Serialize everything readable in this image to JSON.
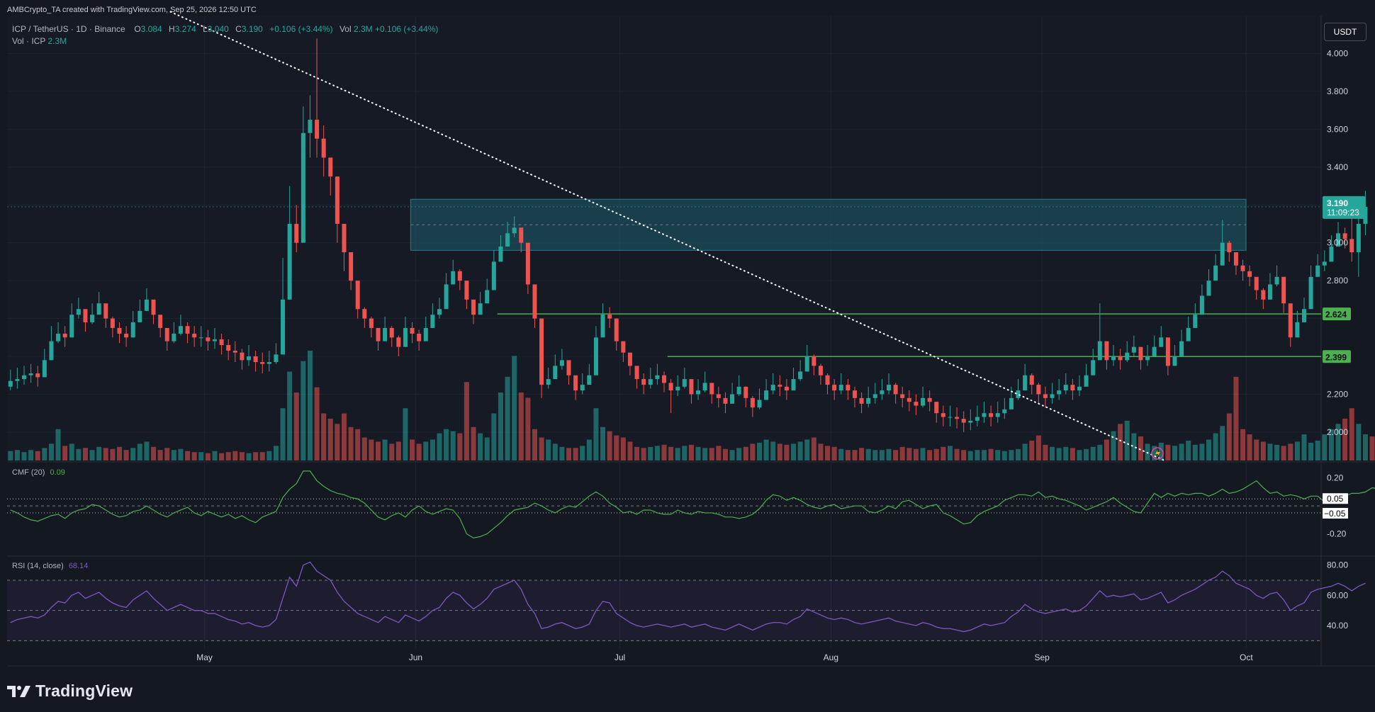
{
  "attribution": "AMBCrypto_TA created with TradingView.com, Sep 25, 2026 12:50 UTC",
  "symbol": {
    "name": "ICP / TetherUS · 1D · Binance",
    "open_label": "O",
    "open": "3.084",
    "high_label": "H",
    "high": "3.274",
    "low_label": "L",
    "low": "3.040",
    "close_label": "C",
    "close": "3.190",
    "change": "+0.106 (+3.44%)",
    "vol_label": "Vol",
    "vol_value": "2.3M",
    "vol_change": "+0.106 (+3.44%)"
  },
  "volume_legend": {
    "label": "Vol · ICP",
    "value": "2.3M"
  },
  "currency_button": "USDT",
  "price_badge": {
    "price": "3.190",
    "countdown": "11:09:23"
  },
  "level_badges": [
    "2.624",
    "2.399"
  ],
  "price_axis_labels": [
    "4.000",
    "3.800",
    "3.600",
    "3.400",
    "3.000",
    "2.800",
    "2.200",
    "2.000"
  ],
  "time_axis_labels": [
    "May",
    "Jun",
    "Jul",
    "Aug",
    "Sep",
    "Oct"
  ],
  "cmf": {
    "label": "CMF (20)",
    "value": "0.09",
    "axis_labels": [
      "0.20",
      "-0.20"
    ],
    "level_badges": [
      "0.05",
      "−0.05"
    ]
  },
  "rsi": {
    "label": "RSI (14, close)",
    "value": "68.14",
    "axis_labels": [
      "80.00",
      "60.00",
      "40.00"
    ]
  },
  "brand": "TradingView",
  "colors": {
    "up": "#26a69a",
    "down": "#ef5350",
    "cmf": "#4caf50",
    "rsi": "#7e57c2",
    "level": "#4caf50",
    "zone": "#1e5f6e"
  },
  "chart_data": [
    {
      "type": "candlestick",
      "title": "ICP / TetherUS · 1D · Binance",
      "x_range": [
        "2026-04-02",
        "2026-10-12"
      ],
      "ylim": [
        1.85,
        4.2
      ],
      "closes": [
        2.27,
        2.28,
        2.3,
        2.31,
        2.29,
        2.38,
        2.48,
        2.52,
        2.5,
        2.62,
        2.65,
        2.58,
        2.62,
        2.68,
        2.6,
        2.55,
        2.52,
        2.5,
        2.58,
        2.64,
        2.7,
        2.62,
        2.55,
        2.48,
        2.52,
        2.56,
        2.52,
        2.5,
        2.5,
        2.48,
        2.49,
        2.46,
        2.43,
        2.42,
        2.38,
        2.4,
        2.37,
        2.36,
        2.37,
        2.41,
        2.7,
        3.1,
        3.0,
        3.58,
        3.65,
        3.55,
        3.45,
        3.35,
        3.1,
        2.95,
        2.8,
        2.65,
        2.6,
        2.55,
        2.48,
        2.55,
        2.5,
        2.45,
        2.55,
        2.52,
        2.48,
        2.55,
        2.62,
        2.65,
        2.78,
        2.85,
        2.8,
        2.7,
        2.62,
        2.68,
        2.75,
        2.9,
        2.98,
        3.05,
        3.08,
        3.0,
        2.78,
        2.6,
        2.25,
        2.28,
        2.35,
        2.38,
        2.3,
        2.22,
        2.25,
        2.3,
        2.5,
        2.62,
        2.6,
        2.48,
        2.42,
        2.35,
        2.28,
        2.25,
        2.28,
        2.3,
        2.26,
        2.22,
        2.24,
        2.28,
        2.2,
        2.22,
        2.26,
        2.2,
        2.18,
        2.15,
        2.2,
        2.24,
        2.18,
        2.13,
        2.17,
        2.22,
        2.25,
        2.24,
        2.22,
        2.28,
        2.32,
        2.4,
        2.35,
        2.3,
        2.25,
        2.22,
        2.25,
        2.22,
        2.18,
        2.15,
        2.18,
        2.2,
        2.22,
        2.25,
        2.2,
        2.18,
        2.16,
        2.14,
        2.18,
        2.16,
        2.1,
        2.08,
        2.08,
        2.07,
        2.05,
        2.06,
        2.08,
        2.1,
        2.08,
        2.1,
        2.12,
        2.18,
        2.22,
        2.3,
        2.25,
        2.2,
        2.18,
        2.2,
        2.22,
        2.25,
        2.22,
        2.24,
        2.3,
        2.38,
        2.48,
        2.38,
        2.4,
        2.38,
        2.42,
        2.45,
        2.38,
        2.4,
        2.45,
        2.5,
        2.35,
        2.4,
        2.48,
        2.55,
        2.62,
        2.72,
        2.8,
        2.88,
        3.0,
        2.95,
        2.88,
        2.85,
        2.82,
        2.75,
        2.7,
        2.78,
        2.82,
        2.68,
        2.5,
        2.58,
        2.65,
        2.82,
        2.88,
        2.9,
        2.98,
        3.05,
        3.02,
        2.95,
        3.1,
        3.19
      ],
      "highs": [
        2.33,
        2.34,
        2.35,
        2.36,
        2.35,
        2.44,
        2.56,
        2.58,
        2.56,
        2.68,
        2.71,
        2.64,
        2.68,
        2.74,
        2.66,
        2.61,
        2.58,
        2.56,
        2.64,
        2.7,
        2.76,
        2.68,
        2.61,
        2.54,
        2.58,
        2.62,
        2.58,
        2.56,
        2.56,
        2.54,
        2.55,
        2.52,
        2.49,
        2.48,
        2.44,
        2.46,
        2.43,
        2.42,
        2.43,
        2.47,
        2.92,
        3.3,
        3.2,
        3.72,
        3.78,
        4.08,
        3.62,
        3.45,
        3.2,
        3.05,
        2.88,
        2.71,
        2.66,
        2.61,
        2.54,
        2.61,
        2.56,
        2.51,
        2.61,
        2.58,
        2.54,
        2.61,
        2.68,
        2.71,
        2.84,
        2.91,
        2.86,
        2.76,
        2.68,
        2.74,
        2.81,
        2.96,
        3.04,
        3.11,
        3.14,
        3.06,
        2.84,
        2.66,
        2.31,
        2.34,
        2.41,
        2.44,
        2.36,
        2.28,
        2.31,
        2.36,
        2.56,
        2.68,
        2.66,
        2.54,
        2.48,
        2.41,
        2.34,
        2.31,
        2.34,
        2.36,
        2.32,
        2.28,
        2.3,
        2.34,
        2.26,
        2.28,
        2.32,
        2.26,
        2.24,
        2.21,
        2.26,
        2.3,
        2.24,
        2.19,
        2.23,
        2.28,
        2.31,
        2.3,
        2.28,
        2.34,
        2.38,
        2.46,
        2.41,
        2.36,
        2.31,
        2.28,
        2.31,
        2.28,
        2.24,
        2.21,
        2.24,
        2.26,
        2.28,
        2.31,
        2.26,
        2.24,
        2.22,
        2.2,
        2.24,
        2.22,
        2.16,
        2.14,
        2.14,
        2.13,
        2.11,
        2.12,
        2.14,
        2.16,
        2.14,
        2.16,
        2.18,
        2.24,
        2.28,
        2.36,
        2.31,
        2.26,
        2.24,
        2.26,
        2.28,
        2.31,
        2.28,
        2.3,
        2.36,
        2.44,
        2.68,
        2.44,
        2.46,
        2.44,
        2.48,
        2.51,
        2.44,
        2.46,
        2.51,
        2.56,
        2.41,
        2.46,
        2.54,
        2.61,
        2.68,
        2.78,
        2.86,
        2.94,
        3.12,
        3.01,
        2.94,
        2.91,
        2.88,
        2.81,
        2.76,
        2.84,
        2.88,
        2.74,
        2.56,
        2.64,
        2.71,
        2.88,
        2.94,
        2.96,
        3.04,
        3.11,
        3.08,
        3.15,
        3.2,
        3.274
      ],
      "lows": [
        2.22,
        2.23,
        2.25,
        2.26,
        2.24,
        2.33,
        2.43,
        2.47,
        2.45,
        2.57,
        2.6,
        2.53,
        2.57,
        2.63,
        2.55,
        2.5,
        2.47,
        2.45,
        2.53,
        2.59,
        2.65,
        2.57,
        2.5,
        2.43,
        2.47,
        2.51,
        2.47,
        2.45,
        2.45,
        2.43,
        2.44,
        2.41,
        2.38,
        2.37,
        2.33,
        2.35,
        2.32,
        2.31,
        2.32,
        2.36,
        2.65,
        2.95,
        2.95,
        3.1,
        3.45,
        3.45,
        3.35,
        3.25,
        3.0,
        2.85,
        2.75,
        2.6,
        2.55,
        2.5,
        2.43,
        2.5,
        2.45,
        2.4,
        2.5,
        2.47,
        2.43,
        2.5,
        2.57,
        2.6,
        2.73,
        2.8,
        2.75,
        2.65,
        2.57,
        2.63,
        2.7,
        2.85,
        2.93,
        3.0,
        3.03,
        2.95,
        2.73,
        2.55,
        2.18,
        2.23,
        2.3,
        2.33,
        2.25,
        2.17,
        2.2,
        2.25,
        2.45,
        2.57,
        2.55,
        2.43,
        2.37,
        2.3,
        2.23,
        2.2,
        2.23,
        2.25,
        2.21,
        2.1,
        2.19,
        2.23,
        2.15,
        2.17,
        2.21,
        2.15,
        2.13,
        2.1,
        2.15,
        2.19,
        2.13,
        2.08,
        2.12,
        2.17,
        2.2,
        2.19,
        2.17,
        2.23,
        2.27,
        2.35,
        2.3,
        2.25,
        2.2,
        2.17,
        2.2,
        2.17,
        2.13,
        2.1,
        2.13,
        2.15,
        2.17,
        2.2,
        2.15,
        2.13,
        2.11,
        2.09,
        2.13,
        2.11,
        2.05,
        2.03,
        2.03,
        2.02,
        2.0,
        2.01,
        2.03,
        2.05,
        2.03,
        2.05,
        2.07,
        2.13,
        2.17,
        2.25,
        2.2,
        2.15,
        2.13,
        2.15,
        2.17,
        2.2,
        2.17,
        2.19,
        2.25,
        2.33,
        2.43,
        2.33,
        2.35,
        2.33,
        2.37,
        2.4,
        2.33,
        2.35,
        2.4,
        2.45,
        2.3,
        2.35,
        2.43,
        2.5,
        2.57,
        2.67,
        2.75,
        2.83,
        2.95,
        2.9,
        2.83,
        2.8,
        2.77,
        2.7,
        2.65,
        2.73,
        2.77,
        2.63,
        2.45,
        2.53,
        2.6,
        2.77,
        2.83,
        2.85,
        2.93,
        3.0,
        2.97,
        2.9,
        2.82,
        3.04
      ],
      "volumes": [
        0.9,
        1.0,
        0.8,
        1.0,
        0.9,
        1.2,
        1.6,
        3.0,
        1.4,
        1.6,
        1.1,
        1.2,
        1.0,
        1.3,
        1.2,
        1.1,
        1.3,
        1.0,
        1.2,
        1.6,
        1.8,
        1.3,
        1.0,
        1.2,
        1.0,
        1.1,
        0.9,
        0.8,
        0.8,
        0.7,
        0.9,
        0.7,
        0.8,
        0.9,
        0.8,
        0.7,
        0.8,
        0.8,
        0.9,
        1.4,
        5.0,
        8.5,
        6.5,
        9.5,
        10.5,
        7.0,
        4.5,
        4.0,
        3.5,
        4.5,
        3.2,
        3.0,
        2.2,
        2.0,
        1.8,
        2.0,
        1.6,
        1.8,
        5.0,
        2.0,
        1.6,
        1.8,
        2.0,
        2.6,
        3.0,
        2.8,
        2.6,
        7.5,
        3.2,
        2.6,
        2.2,
        4.5,
        6.5,
        8.0,
        10.0,
        6.5,
        6.0,
        3.0,
        2.2,
        2.0,
        1.6,
        1.3,
        1.2,
        1.2,
        1.4,
        2.0,
        5.0,
        3.2,
        2.8,
        2.4,
        2.2,
        1.8,
        1.3,
        1.2,
        1.3,
        1.4,
        1.5,
        1.3,
        1.2,
        1.4,
        1.5,
        1.3,
        1.2,
        1.2,
        1.4,
        1.1,
        1.0,
        1.2,
        1.3,
        1.6,
        1.7,
        2.0,
        1.8,
        1.6,
        1.5,
        1.6,
        1.8,
        2.0,
        2.2,
        1.6,
        1.4,
        1.3,
        1.1,
        1.0,
        1.0,
        1.2,
        1.1,
        1.0,
        1.0,
        1.1,
        1.0,
        1.3,
        1.2,
        1.1,
        1.2,
        1.0,
        1.1,
        1.3,
        1.4,
        1.1,
        1.0,
        0.9,
        1.0,
        1.0,
        1.1,
        1.0,
        0.9,
        1.0,
        1.1,
        1.6,
        1.9,
        2.4,
        1.5,
        1.3,
        1.2,
        1.3,
        1.2,
        1.0,
        1.1,
        1.3,
        1.5,
        2.0,
        2.8,
        3.5,
        3.8,
        2.6,
        2.3,
        1.6,
        1.4,
        1.7,
        1.5,
        1.4,
        1.6,
        1.9,
        1.5,
        1.6,
        2.0,
        2.6,
        3.3,
        4.5,
        8.0,
        3.0,
        2.5,
        2.0,
        1.8,
        1.6,
        1.5,
        1.4,
        1.6,
        1.8,
        2.5,
        1.7,
        1.9,
        2.5,
        3.0,
        3.5,
        4.0,
        5.0,
        3.5,
        2.5,
        2.3
      ],
      "resistance_zone": [
        2.96,
        3.23
      ],
      "support_levels": [
        2.624,
        2.399
      ]
    },
    {
      "type": "line",
      "title": "CMF (20)",
      "ylim": [
        -0.35,
        0.3
      ],
      "levels": [
        0.05,
        -0.05
      ],
      "values": [
        -0.03,
        -0.05,
        -0.08,
        -0.1,
        -0.11,
        -0.09,
        -0.07,
        -0.06,
        -0.09,
        -0.05,
        -0.03,
        -0.02,
        0.01,
        0.0,
        -0.03,
        -0.06,
        -0.08,
        -0.07,
        -0.04,
        -0.03,
        0.0,
        -0.03,
        -0.06,
        -0.08,
        -0.05,
        -0.03,
        -0.01,
        -0.05,
        -0.07,
        -0.04,
        -0.06,
        -0.08,
        -0.06,
        -0.09,
        -0.07,
        -0.1,
        -0.12,
        -0.08,
        -0.06,
        -0.04,
        0.06,
        0.12,
        0.16,
        0.25,
        0.25,
        0.18,
        0.14,
        0.11,
        0.09,
        0.08,
        0.06,
        0.05,
        0.02,
        -0.03,
        -0.08,
        -0.1,
        -0.07,
        -0.05,
        -0.08,
        -0.03,
        0.0,
        -0.04,
        -0.06,
        -0.04,
        -0.02,
        -0.03,
        -0.09,
        -0.2,
        -0.23,
        -0.22,
        -0.2,
        -0.16,
        -0.12,
        -0.07,
        -0.03,
        -0.02,
        -0.01,
        0.02,
        0.0,
        -0.03,
        -0.05,
        -0.02,
        0.0,
        -0.01,
        0.03,
        0.07,
        0.1,
        0.07,
        0.02,
        -0.01,
        -0.05,
        -0.04,
        -0.06,
        -0.03,
        -0.03,
        -0.05,
        -0.06,
        -0.06,
        -0.03,
        -0.05,
        -0.06,
        -0.04,
        -0.05,
        -0.05,
        -0.06,
        -0.08,
        -0.08,
        -0.09,
        -0.08,
        -0.06,
        -0.02,
        0.04,
        0.08,
        0.07,
        0.04,
        0.06,
        0.04,
        0.01,
        -0.01,
        -0.02,
        0.0,
        0.01,
        -0.02,
        -0.01,
        0.0,
        0.0,
        -0.04,
        -0.05,
        -0.03,
        0.0,
        -0.02,
        0.03,
        0.04,
        0.01,
        -0.02,
        0.0,
        0.01,
        -0.05,
        -0.07,
        -0.1,
        -0.13,
        -0.12,
        -0.07,
        -0.04,
        -0.02,
        0.0,
        0.04,
        0.06,
        0.08,
        0.08,
        0.07,
        0.1,
        0.06,
        0.07,
        0.05,
        0.04,
        0.02,
        0.0,
        -0.03,
        -0.01,
        0.01,
        0.03,
        0.06,
        0.02,
        -0.01,
        -0.04,
        -0.05,
        0.02,
        0.09,
        0.06,
        0.09,
        0.07,
        0.09,
        0.08,
        0.09,
        0.09,
        0.07,
        0.09,
        0.12,
        0.09,
        0.1,
        0.12,
        0.15,
        0.18,
        0.13,
        0.09,
        0.1,
        0.07,
        0.08,
        0.07,
        0.05,
        0.07,
        0.07,
        0.03,
        0.04,
        0.06,
        0.07,
        0.09,
        0.09,
        0.1,
        0.13,
        0.12,
        0.09,
        0.11,
        0.09
      ]
    },
    {
      "type": "line",
      "title": "RSI (14, close)",
      "ylim": [
        25,
        85
      ],
      "levels": [
        70,
        50,
        30
      ],
      "values": [
        42,
        44,
        45,
        46,
        45,
        47,
        52,
        56,
        55,
        60,
        62,
        58,
        60,
        62,
        58,
        55,
        53,
        52,
        57,
        60,
        63,
        58,
        54,
        50,
        52,
        54,
        52,
        50,
        50,
        48,
        48,
        46,
        44,
        43,
        41,
        42,
        40,
        39,
        40,
        44,
        58,
        72,
        66,
        80,
        82,
        76,
        73,
        70,
        62,
        56,
        52,
        48,
        46,
        44,
        42,
        46,
        44,
        42,
        47,
        45,
        43,
        46,
        50,
        52,
        58,
        62,
        60,
        55,
        51,
        54,
        58,
        64,
        66,
        68,
        70,
        64,
        54,
        48,
        38,
        39,
        41,
        42,
        40,
        38,
        39,
        41,
        50,
        56,
        55,
        48,
        45,
        42,
        40,
        39,
        40,
        41,
        40,
        39,
        40,
        41,
        39,
        40,
        41,
        39,
        38,
        37,
        39,
        41,
        39,
        37,
        39,
        41,
        42,
        42,
        41,
        44,
        46,
        51,
        49,
        47,
        45,
        44,
        45,
        44,
        42,
        41,
        42,
        43,
        44,
        45,
        43,
        42,
        41,
        40,
        42,
        41,
        39,
        38,
        38,
        37,
        36,
        37,
        39,
        41,
        40,
        41,
        42,
        46,
        49,
        54,
        51,
        49,
        48,
        49,
        50,
        51,
        49,
        50,
        53,
        58,
        63,
        59,
        60,
        59,
        60,
        61,
        57,
        58,
        60,
        62,
        55,
        57,
        60,
        62,
        64,
        67,
        70,
        72,
        76,
        73,
        68,
        66,
        64,
        60,
        58,
        61,
        62,
        57,
        50,
        53,
        55,
        62,
        64,
        65,
        66,
        68,
        66,
        63,
        66,
        68
      ]
    }
  ]
}
